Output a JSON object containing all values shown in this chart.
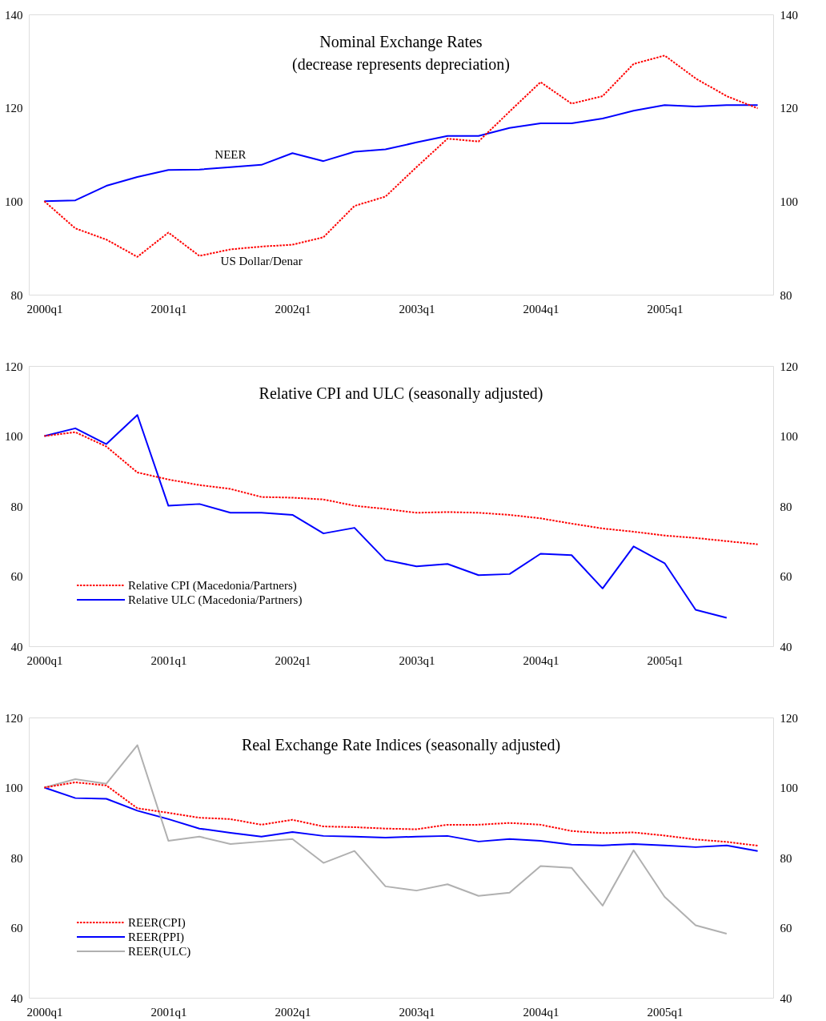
{
  "chart_data": [
    {
      "type": "line",
      "title": "Nominal Exchange Rates",
      "subtitle": "(decrease represents depreciation)",
      "categories": [
        "2000q1",
        null,
        null,
        null,
        "2001q1",
        null,
        null,
        null,
        "2002q1",
        null,
        null,
        null,
        "2003q1",
        null,
        null,
        null,
        "2004q1",
        null,
        null,
        null,
        "2005q1",
        null,
        null,
        null
      ],
      "series": [
        {
          "name": "NEER",
          "color": "#0000ff",
          "line_style": "solid",
          "values": [
            100,
            100.2,
            103.3,
            105.2,
            106.7,
            106.8,
            107.3,
            107.8,
            110.3,
            108.6,
            110.6,
            111.1,
            112.6,
            114,
            114,
            115.7,
            116.7,
            116.7,
            117.7,
            119.4,
            120.6,
            120.3,
            120.6,
            120.6
          ]
        },
        {
          "name": "US Dollar/Denar",
          "color": "#ff0000",
          "line_style": "dashed",
          "values": [
            100,
            94.2,
            91.8,
            88.1,
            93.3,
            88.3,
            89.7,
            90.3,
            90.7,
            92.3,
            99,
            101,
            107.3,
            113.4,
            112.8,
            119.2,
            125.5,
            120.9,
            122.5,
            129.4,
            131.2,
            126.3,
            122.5,
            119.9
          ]
        }
      ],
      "ylim": [
        80,
        140
      ],
      "yticks": [
        80,
        100,
        120,
        140
      ],
      "y2lim": [
        80,
        140
      ],
      "y2ticks": [
        80,
        100,
        120,
        140
      ],
      "grid": false,
      "legend": false
    },
    {
      "type": "line",
      "title": "Relative CPI and ULC (seasonally adjusted)",
      "categories": [
        "2000q1",
        null,
        null,
        null,
        "2001q1",
        null,
        null,
        null,
        "2002q1",
        null,
        null,
        null,
        "2003q1",
        null,
        null,
        null,
        "2004q1",
        null,
        null,
        null,
        "2005q1",
        null,
        null,
        null
      ],
      "series": [
        {
          "name": "Relative CPI (Macedonia/Partners)",
          "color": "#ff0000",
          "line_style": "dashed",
          "values": [
            100,
            101.1,
            97,
            89.6,
            87.6,
            86,
            84.9,
            82.6,
            82.4,
            81.9,
            80.1,
            79.2,
            78.1,
            78.3,
            78.1,
            77.5,
            76.5,
            75,
            73.6,
            72.7,
            71.6,
            70.9,
            70,
            69.1
          ]
        },
        {
          "name": "Relative ULC (Macedonia/Partners)",
          "color": "#0000ff",
          "line_style": "solid",
          "values": [
            100,
            102.2,
            97.7,
            106,
            80.1,
            80.6,
            78.1,
            78.1,
            77.5,
            72.2,
            73.8,
            64.6,
            62.8,
            63.5,
            60.3,
            60.6,
            66.4,
            66,
            56.5,
            68.5,
            63.7,
            50.4,
            48.1,
            null
          ]
        }
      ],
      "ylim": [
        40,
        120
      ],
      "yticks": [
        40,
        60,
        80,
        100,
        120
      ],
      "y2lim": [
        40,
        120
      ],
      "y2ticks": [
        40,
        60,
        80,
        100,
        120
      ],
      "grid": false,
      "legend": "bottom left"
    },
    {
      "type": "line",
      "title": "Real Exchange Rate Indices (seasonally adjusted)",
      "categories": [
        "2000q1",
        null,
        null,
        null,
        "2001q1",
        null,
        null,
        null,
        "2002q1",
        null,
        null,
        null,
        "2003q1",
        null,
        null,
        null,
        "2004q1",
        null,
        null,
        null,
        "2005q1",
        null,
        null,
        null
      ],
      "series": [
        {
          "name": "REER(CPI)",
          "color": "#ff0000",
          "line_style": "dashed",
          "values": [
            100,
            101.5,
            100.6,
            94.1,
            92.8,
            91.4,
            91,
            89.4,
            90.8,
            88.9,
            88.7,
            88.3,
            88.1,
            89.4,
            89.4,
            89.9,
            89.4,
            87.6,
            87,
            87.2,
            86.3,
            85.2,
            84.5,
            83.4
          ]
        },
        {
          "name": "REER(PPI)",
          "color": "#0000ff",
          "line_style": "solid",
          "values": [
            100,
            97,
            96.8,
            93.4,
            91,
            88.3,
            87.1,
            86,
            87.3,
            86.2,
            86,
            85.7,
            86,
            86.2,
            84.6,
            85.3,
            84.8,
            83.7,
            83.5,
            83.9,
            83.5,
            83,
            83.5,
            81.9
          ]
        },
        {
          "name": "REER(ULC)",
          "color": "#b0b0b0",
          "line_style": "solid",
          "values": [
            100,
            102.4,
            101.1,
            112.1,
            84.8,
            86,
            83.9,
            84.6,
            85.3,
            78.5,
            81.9,
            71.8,
            70.6,
            72.4,
            69.1,
            70,
            77.6,
            77.1,
            66.3,
            82.1,
            68.8,
            60.7,
            58.3,
            null
          ]
        }
      ],
      "ylim": [
        40,
        120
      ],
      "yticks": [
        40,
        60,
        80,
        100,
        120
      ],
      "y2lim": [
        40,
        120
      ],
      "y2ticks": [
        40,
        60,
        80,
        100,
        120
      ],
      "grid": false,
      "legend": "bottom left"
    }
  ]
}
